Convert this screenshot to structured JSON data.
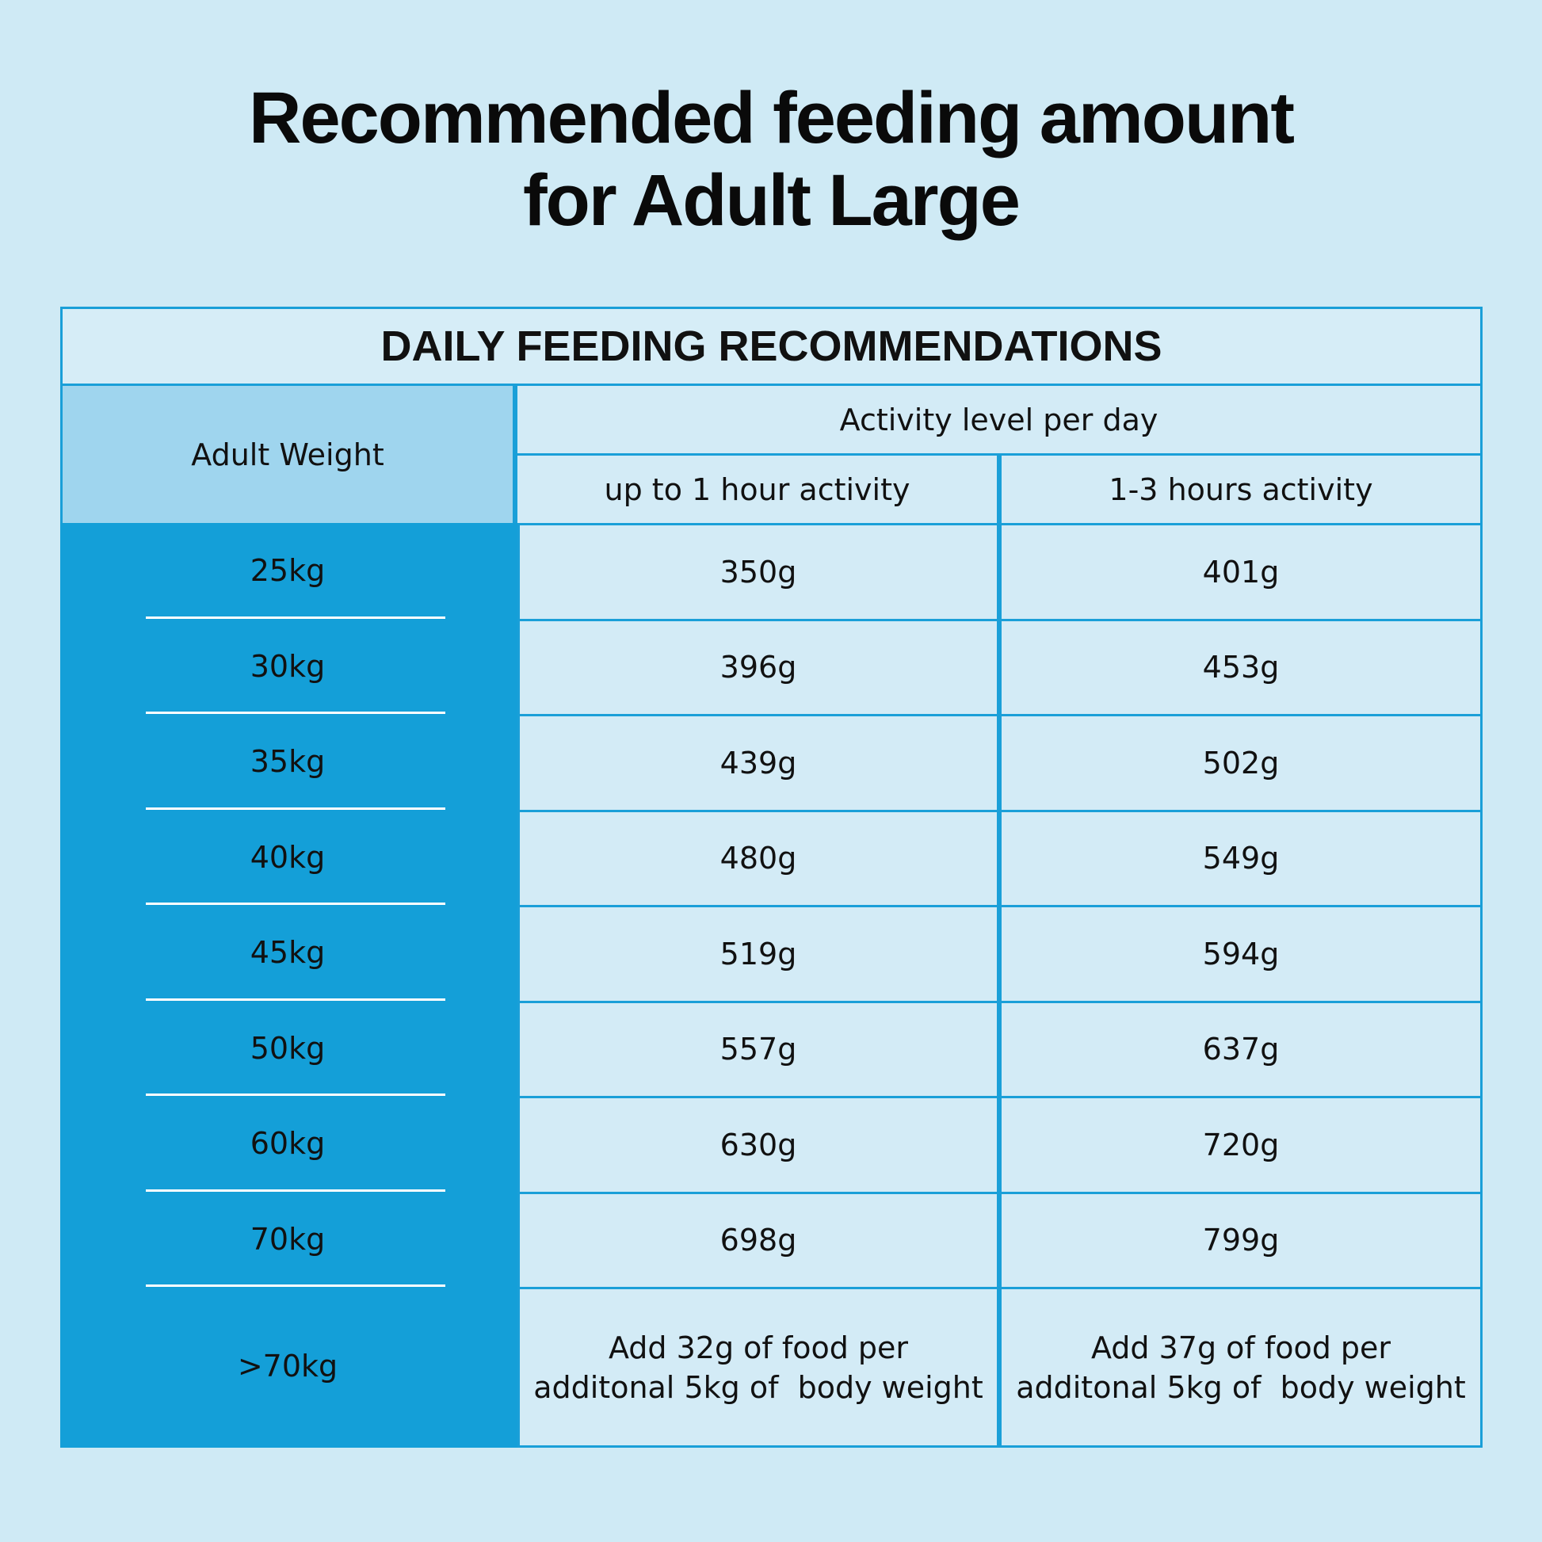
{
  "title": [
    "Recommended feeding amount",
    "for Adult Large"
  ],
  "table": {
    "caption": "DAILY FEEDING RECOMMENDATIONS",
    "weight_header": "Adult Weight",
    "activity_header": "Activity level per day",
    "columns": [
      "up to 1 hour activity",
      "1-3 hours activity"
    ],
    "rows": [
      [
        "25kg",
        "350g",
        "401g"
      ],
      [
        "30kg",
        "396g",
        "453g"
      ],
      [
        "35kg",
        "439g",
        "502g"
      ],
      [
        "40kg",
        "480g",
        "549g"
      ],
      [
        "45kg",
        "519g",
        "594g"
      ],
      [
        "50kg",
        "557g",
        "637g"
      ],
      [
        "60kg",
        "630g",
        "720g"
      ],
      [
        "70kg",
        "698g",
        "799g"
      ]
    ],
    "extra_row": {
      "weight": ">70kg",
      "notes": [
        [
          "Add 32g of food per",
          "additonal 5kg of  body weight"
        ],
        [
          "Add 37g of food per",
          "additonal 5kg of  body weight"
        ]
      ]
    }
  }
}
